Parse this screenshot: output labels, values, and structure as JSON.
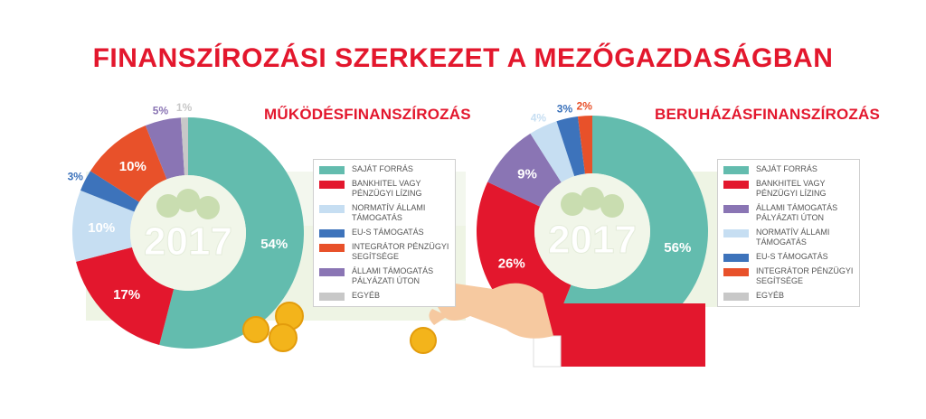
{
  "title": "FINANSZÍROZÁSI SZERKEZET A MEZŐGAZDASÁGBAN",
  "chart_data": [
    {
      "type": "pie",
      "title": "MŰKÖDÉSFINANSZÍROZÁS",
      "center_label": "2017",
      "slices": [
        {
          "label": "SAJÁT FORRÁS",
          "value": 54,
          "value_label": "54%",
          "color": "#63bcae"
        },
        {
          "label": "BANKHITEL VAGY PÉNZÜGYI LÍZING",
          "value": 17,
          "value_label": "17%",
          "color": "#e3172d"
        },
        {
          "label": "NORMATÍV ÁLLAMI TÁMOGATÁS",
          "value": 10,
          "value_label": "10%",
          "color": "#c6def2"
        },
        {
          "label": "EU-S TÁMOGATÁS",
          "value": 3,
          "value_label": "3%",
          "color": "#3d73bb"
        },
        {
          "label": "INTEGRÁTOR PÉNZÜGYI SEGÍTSÉGE",
          "value": 10,
          "value_label": "10%",
          "color": "#e8512a"
        },
        {
          "label": "ÁLLAMI TÁMOGATÁS PÁLYÁZATI ÚTON",
          "value": 5,
          "value_label": "5%",
          "color": "#8a75b4"
        },
        {
          "label": "EGYÉB",
          "value": 1,
          "value_label": "1%",
          "color": "#c8c8c8"
        }
      ],
      "legend": [
        {
          "label": "SAJÁT FORRÁS",
          "color": "#63bcae"
        },
        {
          "label": "BANKHITEL VAGY PÉNZÜGYI LÍZING",
          "color": "#e3172d"
        },
        {
          "label": "NORMATÍV ÁLLAMI TÁMOGATÁS",
          "color": "#c6def2"
        },
        {
          "label": "EU-S TÁMOGATÁS",
          "color": "#3d73bb"
        },
        {
          "label": "INTEGRÁTOR PÉNZÜGYI SEGÍTSÉGE",
          "color": "#e8512a"
        },
        {
          "label": "ÁLLAMI TÁMOGATÁS PÁLYÁZATI ÚTON",
          "color": "#8a75b4"
        },
        {
          "label": "EGYÉB",
          "color": "#c8c8c8"
        }
      ]
    },
    {
      "type": "pie",
      "title": "BERUHÁZÁSFINANSZÍROZÁS",
      "center_label": "2017",
      "slices": [
        {
          "label": "SAJÁT FORRÁS",
          "value": 56,
          "value_label": "56%",
          "color": "#63bcae"
        },
        {
          "label": "BANKHITEL VAGY PÉNZÜGYI LÍZING",
          "value": 26,
          "value_label": "26%",
          "color": "#e3172d"
        },
        {
          "label": "ÁLLAMI TÁMOGATÁS PÁLYÁZATI ÚTON",
          "value": 9,
          "value_label": "9%",
          "color": "#8a75b4"
        },
        {
          "label": "NORMATÍV ÁLLAMI TÁMOGATÁS",
          "value": 4,
          "value_label": "4%",
          "color": "#c6def2"
        },
        {
          "label": "EU-S TÁMOGATÁS",
          "value": 3,
          "value_label": "3%",
          "color": "#3d73bb"
        },
        {
          "label": "INTEGRÁTOR PÉNZÜGYI SEGÍTSÉGE",
          "value": 2,
          "value_label": "2%",
          "color": "#e8512a"
        }
      ],
      "legend": [
        {
          "label": "SAJÁT FORRÁS",
          "color": "#63bcae"
        },
        {
          "label": "BANKHITEL VAGY PÉNZÜGYI LÍZING",
          "color": "#e3172d"
        },
        {
          "label": "ÁLLAMI TÁMOGATÁS PÁLYÁZATI ÚTON",
          "color": "#8a75b4"
        },
        {
          "label": "NORMATÍV ÁLLAMI TÁMOGATÁS",
          "color": "#c6def2"
        },
        {
          "label": "EU-S TÁMOGATÁS",
          "color": "#3d73bb"
        },
        {
          "label": "INTEGRÁTOR PÉNZÜGYI SEGÍTSÉGE",
          "color": "#e8512a"
        },
        {
          "label": "EGYÉB",
          "color": "#c8c8c8"
        }
      ]
    }
  ]
}
